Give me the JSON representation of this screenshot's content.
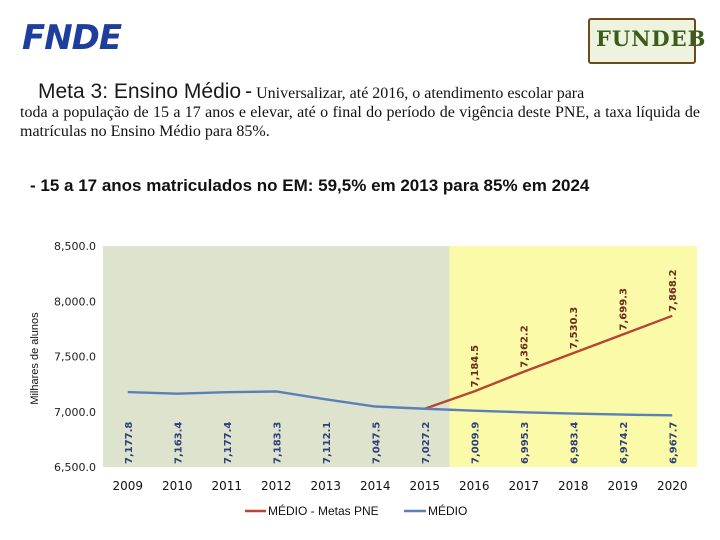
{
  "header": {
    "logo_left": "FNDE",
    "logo_right": "FUNDEB"
  },
  "heading": {
    "meta_title": "Meta 3: Ensino Médio",
    "separator": "-",
    "description_line1": "Universalizar, até 2016, o atendimento escolar para",
    "description_rest": "toda a população de 15 a 17 anos e elevar, até o final do período de vigência deste PNE, a taxa líquida de matrículas no Ensino Médio para 85%."
  },
  "subheading": "- 15 a 17 anos matriculados no EM: 59,5% em 2013 para 85% em 2024",
  "colors": {
    "bg_history": "#dde3cc",
    "bg_projection": "#fbfaa8",
    "meta_line": "#b7462f",
    "medio_line": "#5b7fb9",
    "label_history": "#2f3f7a",
    "label_projection_top": "#6b2a1a",
    "label_projection_bottom": "#2f3f7a"
  },
  "chart_data": {
    "type": "line",
    "ylabel": "Milhares de alunos",
    "ylim": [
      6500,
      8500
    ],
    "yticks": [
      "6,500.0",
      "7,000.0",
      "7,500.0",
      "8,000.0",
      "8,500.0"
    ],
    "ytick_values": [
      6500,
      7000,
      7500,
      8000,
      8500
    ],
    "categories": [
      "2009",
      "2010",
      "2011",
      "2012",
      "2013",
      "2014",
      "2015",
      "2016",
      "2017",
      "2018",
      "2019",
      "2020"
    ],
    "background_regions": [
      {
        "from": "2009",
        "to": "2015",
        "kind": "history"
      },
      {
        "from": "2016",
        "to": "2020",
        "kind": "projection"
      }
    ],
    "series": [
      {
        "name": "MÉDIO - Metas PNE",
        "values": [
          null,
          null,
          null,
          null,
          null,
          null,
          7027.2,
          7184.5,
          7362.2,
          7530.3,
          7699.3,
          7868.2
        ],
        "labels": [
          "",
          "",
          "",
          "",
          "",
          "",
          "",
          "7,184.5",
          "7,362.2",
          "7,530.3",
          "7,699.3",
          "7,868.2"
        ]
      },
      {
        "name": "MÉDIO",
        "values": [
          7177.8,
          7163.4,
          7177.4,
          7183.3,
          7112.1,
          7047.5,
          7027.2,
          7009.9,
          6995.3,
          6983.4,
          6974.2,
          6967.7
        ],
        "labels": [
          "7,177.8",
          "7,163.4",
          "7,177.4",
          "7,183.3",
          "7,112.1",
          "7,047.5",
          "7,027.2",
          "7,009.9",
          "6,995.3",
          "6,983.4",
          "6,974.2",
          "6,967.7"
        ]
      }
    ],
    "legend": {
      "placement": "bottom",
      "items": [
        "MÉDIO - Metas PNE",
        "MÉDIO"
      ]
    }
  }
}
